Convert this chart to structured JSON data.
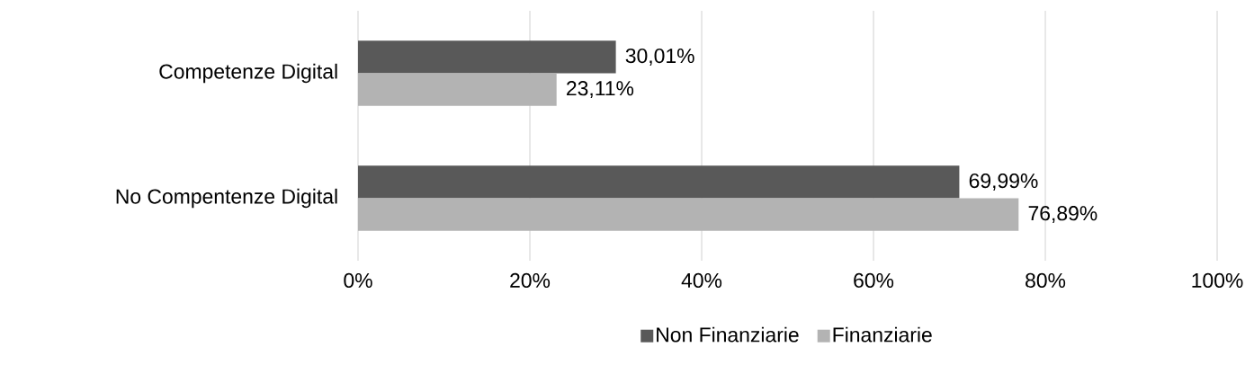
{
  "chart_data": {
    "type": "bar",
    "orientation": "horizontal",
    "categories": [
      "Competenze Digital",
      "No Compentenze Digital"
    ],
    "series": [
      {
        "name": "Non Finanziarie",
        "color": "#595959",
        "values": [
          30.01,
          69.99
        ],
        "value_labels": [
          "30,01%",
          "69,99%"
        ]
      },
      {
        "name": "Finanziarie",
        "color": "#b3b3b3",
        "values": [
          23.11,
          76.89
        ],
        "value_labels": [
          "23,11%",
          "76,89%"
        ]
      }
    ],
    "xlim": [
      0,
      100
    ],
    "xticks": [
      {
        "value": 0,
        "label": "0%"
      },
      {
        "value": 20,
        "label": "20%"
      },
      {
        "value": 40,
        "label": "40%"
      },
      {
        "value": 60,
        "label": "60%"
      },
      {
        "value": 80,
        "label": "80%"
      },
      {
        "value": 100,
        "label": "100%"
      }
    ],
    "grid": "x",
    "legend": "bottom"
  }
}
